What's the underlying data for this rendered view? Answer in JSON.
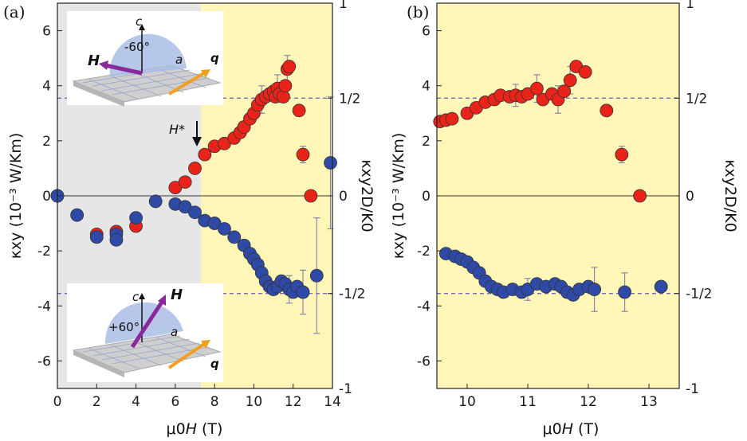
{
  "colors": {
    "red": "#e8231a",
    "blue": "#2f4aa6",
    "yellow": "#fff6b8",
    "gray": "#e6e6e6",
    "dashed": "#6a5ab4",
    "errorbar": "#8888aa"
  },
  "chart_data": [
    {
      "panel": "(a)",
      "type": "scatter",
      "xlabel_prefix": "μ0",
      "xlabel_var": "H",
      "xlabel_unit": "(T)",
      "ylabel": "κxy (10⁻³ W/Km)",
      "ylabel2": "κxy2D/K0",
      "xlim": [
        0,
        14
      ],
      "ylim": [
        -7,
        7
      ],
      "xticks": [
        "0",
        "2",
        "4",
        "6",
        "8",
        "10",
        "12",
        "14"
      ],
      "yticks": [
        "6",
        "4",
        "2",
        "0",
        "-2",
        "-4",
        "-6"
      ],
      "right_ticks": [
        "1",
        "1/2",
        "0",
        "-1/2",
        "-1"
      ],
      "half_quantized_level": 3.55,
      "shaded_regions": [
        {
          "from": 0,
          "to": 7.3,
          "fill": "gray"
        },
        {
          "from": 7.3,
          "to": 14,
          "fill": "yellow"
        }
      ],
      "annotation": {
        "text": "H*",
        "x": 7.3,
        "y": 3.2
      },
      "insets": [
        {
          "angle_label": "-60°",
          "field_label": "H",
          "axis_c": "c",
          "axis_a": "a",
          "wave": "q"
        },
        {
          "angle_label": "+60°",
          "field_label": "H",
          "axis_c": "c",
          "axis_a": "a",
          "wave": "q"
        }
      ],
      "series": [
        {
          "name": "θ = -60°",
          "color": "red",
          "points": [
            [
              0,
              0
            ],
            [
              2,
              -1.4
            ],
            [
              3,
              -1.3
            ],
            [
              4,
              -1.1
            ],
            [
              6,
              0.3
            ],
            [
              6.5,
              0.5
            ],
            [
              7,
              1.0
            ],
            [
              7.5,
              1.5
            ],
            [
              8,
              1.8
            ],
            [
              8.5,
              1.9
            ],
            [
              9,
              2.1
            ],
            [
              9.3,
              2.3
            ],
            [
              9.5,
              2.5
            ],
            [
              9.8,
              2.8
            ],
            [
              10,
              3.0
            ],
            [
              10.2,
              3.3
            ],
            [
              10.4,
              3.5
            ],
            [
              10.6,
              3.6
            ],
            [
              10.8,
              3.7
            ],
            [
              11,
              3.8
            ],
            [
              11.1,
              3.6
            ],
            [
              11.2,
              3.9
            ],
            [
              11.3,
              3.7
            ],
            [
              11.5,
              3.6
            ],
            [
              11.6,
              4.0
            ],
            [
              11.7,
              4.6
            ],
            [
              11.8,
              4.7
            ],
            [
              12.3,
              3.1
            ],
            [
              12.5,
              1.5
            ],
            [
              12.9,
              0
            ]
          ],
          "errors": [
            [
              10.4,
              3.5,
              0.5
            ],
            [
              11.2,
              3.9,
              0.5
            ],
            [
              11.7,
              4.6,
              0.5
            ],
            [
              12.5,
              1.5,
              0.3
            ]
          ]
        },
        {
          "name": "θ = +60°",
          "color": "blue",
          "points": [
            [
              0,
              0
            ],
            [
              1,
              -0.7
            ],
            [
              2,
              -1.5
            ],
            [
              3,
              -1.4
            ],
            [
              3,
              -1.6
            ],
            [
              4,
              -0.8
            ],
            [
              5,
              -0.2
            ],
            [
              6,
              -0.3
            ],
            [
              6.5,
              -0.4
            ],
            [
              7,
              -0.6
            ],
            [
              7.5,
              -0.9
            ],
            [
              8,
              -1.0
            ],
            [
              8.5,
              -1.2
            ],
            [
              9,
              -1.5
            ],
            [
              9.5,
              -1.8
            ],
            [
              9.8,
              -2.1
            ],
            [
              10,
              -2.3
            ],
            [
              10.2,
              -2.5
            ],
            [
              10.4,
              -2.8
            ],
            [
              10.6,
              -3.1
            ],
            [
              10.8,
              -3.3
            ],
            [
              11,
              -3.4
            ],
            [
              11.2,
              -3.3
            ],
            [
              11.4,
              -3.1
            ],
            [
              11.6,
              -3.2
            ],
            [
              11.8,
              -3.4
            ],
            [
              12,
              -3.5
            ],
            [
              12.2,
              -3.3
            ],
            [
              12.5,
              -3.5
            ],
            [
              13.2,
              -2.9
            ],
            [
              13.9,
              1.2
            ]
          ],
          "errors": [
            [
              11.8,
              -3.4,
              0.5
            ],
            [
              12.5,
              -3.5,
              0.8
            ],
            [
              13.2,
              -2.9,
              2.1
            ],
            [
              13.9,
              1.2,
              2.4
            ]
          ]
        }
      ]
    },
    {
      "panel": "(b)",
      "type": "scatter",
      "xlabel_prefix": "μ0",
      "xlabel_var": "H",
      "xlabel_unit": "(T)",
      "ylabel": "κxy (10⁻³ W/Km)",
      "ylabel2": "κxy2D/K0",
      "xlim": [
        9.5,
        13.5
      ],
      "ylim": [
        -7,
        7
      ],
      "xticks": [
        "10",
        "11",
        "12",
        "13"
      ],
      "yticks": [
        "6",
        "4",
        "2",
        "0",
        "-2",
        "-4",
        "-6"
      ],
      "right_ticks": [
        "1",
        "1/2",
        "0",
        "-1/2",
        "-1"
      ],
      "half_quantized_level": 3.55,
      "shaded_regions": [
        {
          "from": 9.5,
          "to": 13.5,
          "fill": "yellow"
        }
      ],
      "series": [
        {
          "name": "θ = -60°",
          "color": "red",
          "points": [
            [
              9.55,
              2.7
            ],
            [
              9.65,
              2.75
            ],
            [
              9.75,
              2.8
            ],
            [
              10,
              3.0
            ],
            [
              10.15,
              3.2
            ],
            [
              10.3,
              3.4
            ],
            [
              10.45,
              3.5
            ],
            [
              10.55,
              3.65
            ],
            [
              10.7,
              3.6
            ],
            [
              10.8,
              3.65
            ],
            [
              10.9,
              3.6
            ],
            [
              11.0,
              3.7
            ],
            [
              11.15,
              3.9
            ],
            [
              11.25,
              3.5
            ],
            [
              11.4,
              3.7
            ],
            [
              11.5,
              3.5
            ],
            [
              11.6,
              3.8
            ],
            [
              11.7,
              4.2
            ],
            [
              11.8,
              4.7
            ],
            [
              11.95,
              4.5
            ],
            [
              12.3,
              3.1
            ],
            [
              12.55,
              1.5
            ],
            [
              12.85,
              0
            ]
          ],
          "errors": [
            [
              10.8,
              3.65,
              0.4
            ],
            [
              11.15,
              3.9,
              0.5
            ],
            [
              11.5,
              3.5,
              0.5
            ],
            [
              11.7,
              4.2,
              0.5
            ],
            [
              12.55,
              1.5,
              0.3
            ]
          ]
        },
        {
          "name": "θ = +60°",
          "color": "blue",
          "points": [
            [
              9.65,
              -2.1
            ],
            [
              9.8,
              -2.2
            ],
            [
              9.9,
              -2.3
            ],
            [
              10.0,
              -2.4
            ],
            [
              10.1,
              -2.6
            ],
            [
              10.2,
              -2.8
            ],
            [
              10.3,
              -3.1
            ],
            [
              10.4,
              -3.3
            ],
            [
              10.5,
              -3.4
            ],
            [
              10.6,
              -3.5
            ],
            [
              10.75,
              -3.4
            ],
            [
              10.9,
              -3.5
            ],
            [
              11.0,
              -3.4
            ],
            [
              11.15,
              -3.2
            ],
            [
              11.3,
              -3.3
            ],
            [
              11.45,
              -3.2
            ],
            [
              11.55,
              -3.3
            ],
            [
              11.65,
              -3.5
            ],
            [
              11.75,
              -3.6
            ],
            [
              11.85,
              -3.4
            ],
            [
              12.0,
              -3.3
            ],
            [
              12.1,
              -3.4
            ],
            [
              12.6,
              -3.5
            ],
            [
              13.2,
              -3.3
            ]
          ],
          "errors": [
            [
              11.0,
              -3.4,
              0.4
            ],
            [
              12.1,
              -3.4,
              0.8
            ],
            [
              12.6,
              -3.5,
              0.7
            ]
          ]
        }
      ]
    }
  ]
}
